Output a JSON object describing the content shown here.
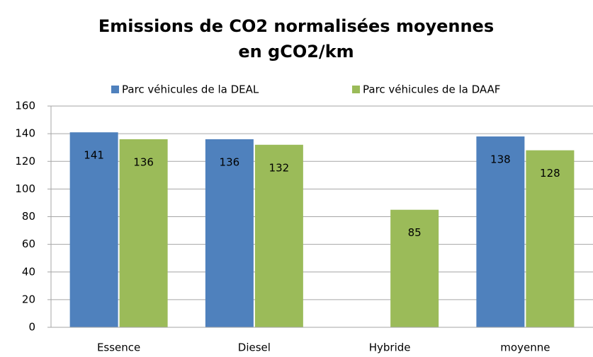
{
  "chart_data": {
    "type": "bar",
    "title": [
      "Emissions de CO2 normalisées moyennes",
      "en gCO2/km"
    ],
    "categories": [
      "Essence",
      "Diesel",
      "Hybride",
      "moyenne"
    ],
    "series": [
      {
        "name": "Parc véhicules de la DEAL",
        "color": "#4f81bd",
        "values": [
          141,
          136,
          null,
          138
        ]
      },
      {
        "name": "Parc véhicules de la DAAF",
        "color": "#9bbb59",
        "values": [
          136,
          132,
          85,
          128
        ]
      }
    ],
    "ylim": [
      0,
      160
    ],
    "yticks": [
      0,
      20,
      40,
      60,
      80,
      100,
      120,
      140,
      160
    ],
    "grid": true,
    "legend": "top"
  }
}
